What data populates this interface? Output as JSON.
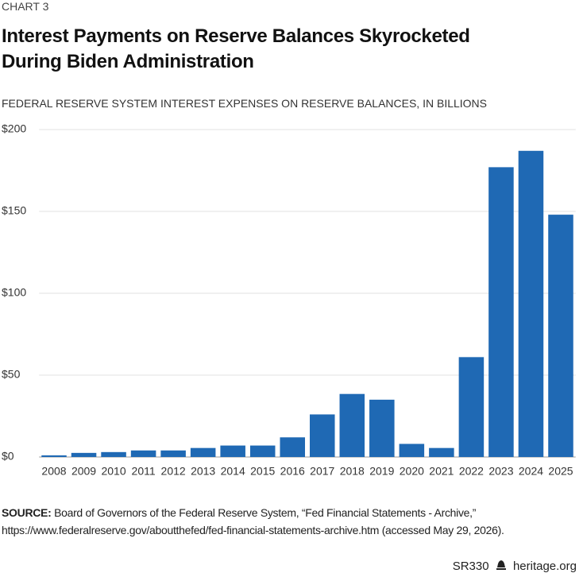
{
  "chart_label": "CHART 3",
  "chart_data": {
    "type": "bar",
    "title": "Interest Payments on Reserve Balances Skyrocketed During Biden Administration",
    "subtitle": "FEDERAL RESERVE SYSTEM INTEREST EXPENSES ON RESERVE BALANCES, IN BILLIONS",
    "categories": [
      "2008",
      "2009",
      "2010",
      "2011",
      "2012",
      "2013",
      "2014",
      "2015",
      "2016",
      "2017",
      "2018",
      "2019",
      "2020",
      "2021",
      "2022",
      "2023",
      "2024",
      "2025"
    ],
    "values": [
      1,
      2.5,
      3,
      4,
      4,
      5.5,
      7,
      7,
      12,
      26,
      38.5,
      35,
      8,
      5.5,
      61,
      177,
      187,
      148
    ],
    "color": "#1f69b4",
    "ylim": [
      0,
      200
    ],
    "yticks": [
      {
        "value": 0,
        "label": "$0"
      },
      {
        "value": 50,
        "label": "$50"
      },
      {
        "value": 100,
        "label": "$100"
      },
      {
        "value": 150,
        "label": "$150"
      },
      {
        "value": 200,
        "label": "$200"
      }
    ],
    "grid": true
  },
  "source": {
    "label": "SOURCE:",
    "lines": [
      "Board of Governors of the Federal Reserve System, “Fed Financial Statements - Archive,”",
      "https://www.federalreserve.gov/aboutthefed/fed-financial-statements-archive.htm (accessed May 29, 2026)."
    ]
  },
  "footer": {
    "report": "SR330",
    "site": "heritage.org"
  }
}
